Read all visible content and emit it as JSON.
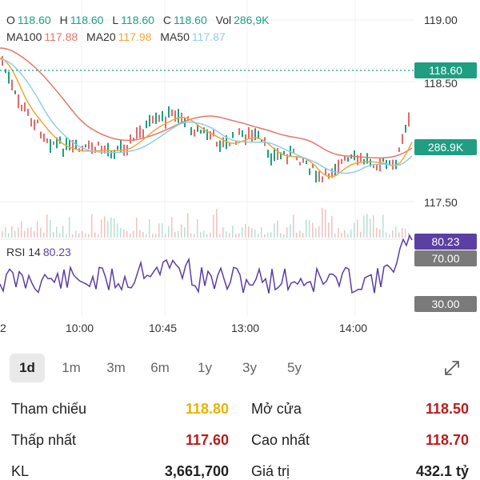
{
  "ohlc": {
    "o_label": "O",
    "o_value": "118.60",
    "h_label": "H",
    "h_value": "118.60",
    "l_label": "L",
    "l_value": "118.60",
    "c_label": "C",
    "c_value": "118.60",
    "vol_label": "Vol",
    "vol_value": "286,9K"
  },
  "ma": {
    "ma100_label": "MA100",
    "ma100_value": "117.88",
    "ma20_label": "MA20",
    "ma20_value": "117.98",
    "ma50_label": "MA50",
    "ma50_value": "117.87"
  },
  "rsi": {
    "label": "RSI 14",
    "value": "80.23"
  },
  "price_axis": {
    "p1": "119.00",
    "p2": "118.50",
    "p3": "117.50",
    "current_price": "118.60",
    "current_volume": "286.9K"
  },
  "rsi_axis": {
    "current": "80.23",
    "upper": "70.00",
    "lower": "30.00"
  },
  "time_axis": [
    "2",
    "10:00",
    "10:45",
    "13:00",
    "14:00"
  ],
  "ranges": [
    {
      "label": "1d",
      "active": true
    },
    {
      "label": "1m"
    },
    {
      "label": "3m"
    },
    {
      "label": "6m"
    },
    {
      "label": "1y"
    },
    {
      "label": "3y"
    },
    {
      "label": "5y"
    }
  ],
  "stats": {
    "ref_label": "Tham chiếu",
    "ref_value": "118.80",
    "open_label": "Mở cửa",
    "open_value": "118.50",
    "low_label": "Thấp nhất",
    "low_value": "117.60",
    "high_label": "Cao nhất",
    "high_value": "118.70",
    "kl_label": "KL",
    "kl_value": "3,661,700",
    "gt_label": "Giá trị",
    "gt_value": "432.1 tỷ"
  },
  "colors": {
    "up": "#1f9e82",
    "down": "#e06a6a",
    "ma100": "#e5776a",
    "ma20": "#f0a53a",
    "ma50": "#8fcdea",
    "rsi": "#5b3fa3",
    "ref": "#e8b400",
    "dark_red": "#b81d1d"
  }
}
